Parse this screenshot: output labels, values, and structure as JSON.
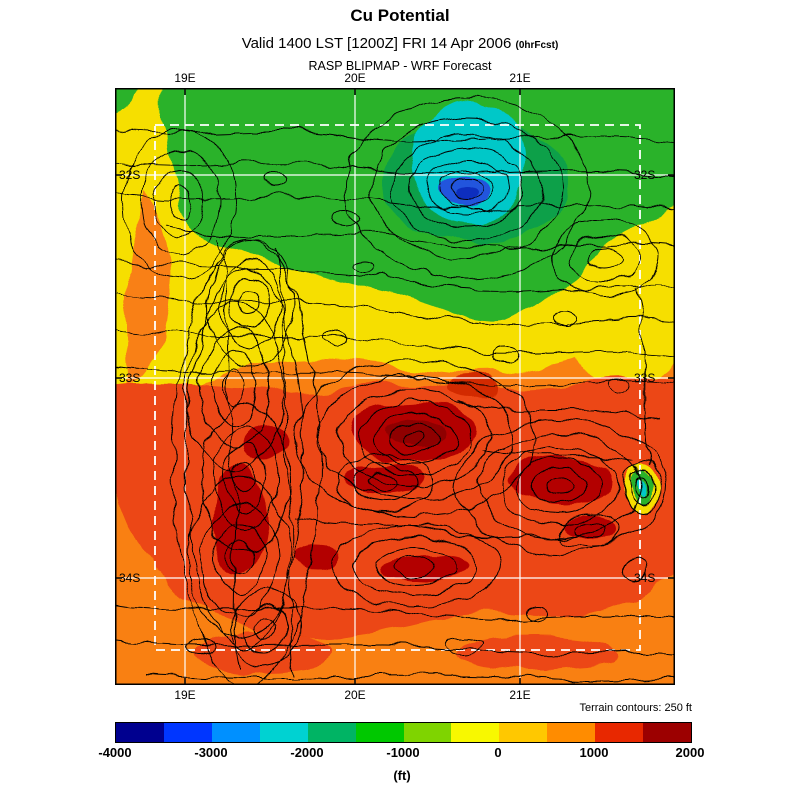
{
  "header": {
    "title": "Cu Potential",
    "valid_line": "Valid 1400 LST [1200Z] FRI 14 Apr 2006",
    "fcst_suffix": "(0hrFcst)",
    "model_line": "RASP BLIPMAP - WRF Forecast"
  },
  "map": {
    "x_ticks": [
      "19E",
      "20E",
      "21E"
    ],
    "y_ticks": [
      "32S",
      "33S",
      "34S"
    ]
  },
  "footnote": "Terrain contours: 250 ft",
  "colorbar": {
    "labels": [
      "-4000",
      "-3000",
      "-2000",
      "-1000",
      "0",
      "1000",
      "2000"
    ],
    "colors": [
      "#00008f",
      "#0036ff",
      "#0090ff",
      "#00d2d2",
      "#00b464",
      "#00c800",
      "#7fd400",
      "#f8f800",
      "#ffc800",
      "#ff8c00",
      "#e82800",
      "#9c0000"
    ],
    "unit": "(ft)"
  }
}
